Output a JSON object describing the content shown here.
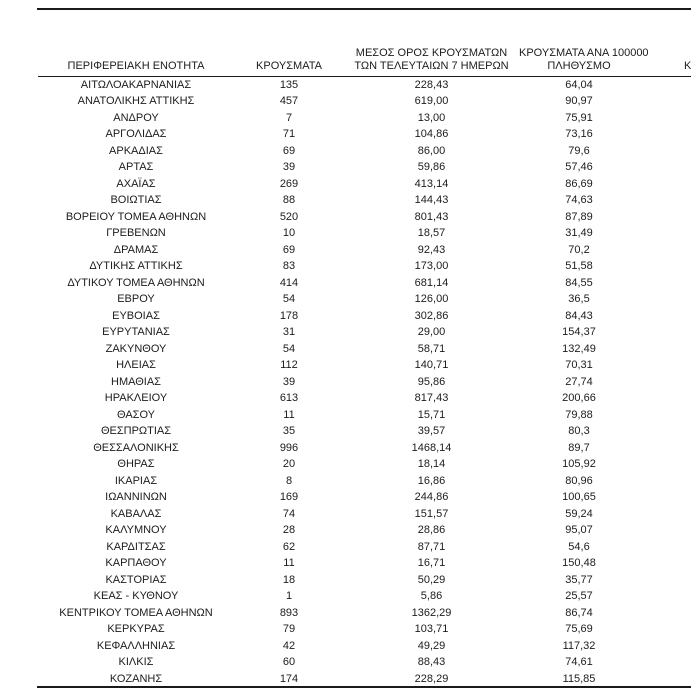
{
  "page": {
    "background": "#ffffff",
    "rule_color": "#1a1a1a",
    "text_color": "#1c1c1c"
  },
  "table": {
    "columns": [
      {
        "id": "region",
        "lines": [
          "ΠΕΡΙΦΕΡΕΙΑΚΗ ΕΝΟΤΗΤΑ"
        ]
      },
      {
        "id": "cases",
        "lines": [
          "ΚΡΟΥΣΜΑΤΑ"
        ]
      },
      {
        "id": "avg7",
        "lines": [
          "ΜΕΣΟΣ ΟΡΟΣ ΚΡΟΥΣΜΑΤΩΝ",
          "ΤΩΝ ΤΕΛΕΥΤΑΙΩΝ 7 ΗΜΕΡΩΝ"
        ]
      },
      {
        "id": "per100k",
        "lines": [
          "ΚΡΟΥΣΜΑΤΑ ΑΝΑ 100000",
          "ΠΛΗΘΥΣΜΟ"
        ]
      },
      {
        "id": "clipped",
        "lines": [
          "Κ"
        ]
      }
    ],
    "rows": [
      [
        "ΑΙΤΩΛΟΑΚΑΡΝΑΝΙΑΣ",
        "135",
        "228,43",
        "64,04"
      ],
      [
        "ΑΝΑΤΟΛΙΚΗΣ ΑΤΤΙΚΗΣ",
        "457",
        "619,00",
        "90,97"
      ],
      [
        "ΑΝΔΡΟΥ",
        "7",
        "13,00",
        "75,91"
      ],
      [
        "ΑΡΓΟΛΙΔΑΣ",
        "71",
        "104,86",
        "73,16"
      ],
      [
        "ΑΡΚΑΔΙΑΣ",
        "69",
        "86,00",
        "79,6"
      ],
      [
        "ΑΡΤΑΣ",
        "39",
        "59,86",
        "57,46"
      ],
      [
        "ΑΧΑΪΑΣ",
        "269",
        "413,14",
        "86,69"
      ],
      [
        "ΒΟΙΩΤΙΑΣ",
        "88",
        "144,43",
        "74,63"
      ],
      [
        "ΒΟΡΕΙΟΥ ΤΟΜΕΑ ΑΘΗΝΩΝ",
        "520",
        "801,43",
        "87,89"
      ],
      [
        "ΓΡΕΒΕΝΩΝ",
        "10",
        "18,57",
        "31,49"
      ],
      [
        "ΔΡΑΜΑΣ",
        "69",
        "92,43",
        "70,2"
      ],
      [
        "ΔΥΤΙΚΗΣ ΑΤΤΙΚΗΣ",
        "83",
        "173,00",
        "51,58"
      ],
      [
        "ΔΥΤΙΚΟΥ ΤΟΜΕΑ ΑΘΗΝΩΝ",
        "414",
        "681,14",
        "84,55"
      ],
      [
        "ΕΒΡΟΥ",
        "54",
        "126,00",
        "36,5"
      ],
      [
        "ΕΥΒΟΙΑΣ",
        "178",
        "302,86",
        "84,43"
      ],
      [
        "ΕΥΡΥΤΑΝΙΑΣ",
        "31",
        "29,00",
        "154,37"
      ],
      [
        "ΖΑΚΥΝΘΟΥ",
        "54",
        "58,71",
        "132,49"
      ],
      [
        "ΗΛΕΙΑΣ",
        "112",
        "140,71",
        "70,31"
      ],
      [
        "ΗΜΑΘΙΑΣ",
        "39",
        "95,86",
        "27,74"
      ],
      [
        "ΗΡΑΚΛΕΙΟΥ",
        "613",
        "817,43",
        "200,66"
      ],
      [
        "ΘΑΣΟΥ",
        "11",
        "15,71",
        "79,88"
      ],
      [
        "ΘΕΣΠΡΩΤΙΑΣ",
        "35",
        "39,57",
        "80,3"
      ],
      [
        "ΘΕΣΣΑΛΟΝΙΚΗΣ",
        "996",
        "1468,14",
        "89,7"
      ],
      [
        "ΘΗΡΑΣ",
        "20",
        "18,14",
        "105,92"
      ],
      [
        "ΙΚΑΡΙΑΣ",
        "8",
        "16,86",
        "80,96"
      ],
      [
        "ΙΩΑΝΝΙΝΩΝ",
        "169",
        "244,86",
        "100,65"
      ],
      [
        "ΚΑΒΑΛΑΣ",
        "74",
        "151,57",
        "59,24"
      ],
      [
        "ΚΑΛΥΜΝΟΥ",
        "28",
        "28,86",
        "95,07"
      ],
      [
        "ΚΑΡΔΙΤΣΑΣ",
        "62",
        "87,71",
        "54,6"
      ],
      [
        "ΚΑΡΠΑΘΟΥ",
        "11",
        "16,71",
        "150,48"
      ],
      [
        "ΚΑΣΤΟΡΙΑΣ",
        "18",
        "50,29",
        "35,77"
      ],
      [
        "ΚΕΑΣ - ΚΥΘΝΟΥ",
        "1",
        "5,86",
        "25,57"
      ],
      [
        "ΚΕΝΤΡΙΚΟΥ ΤΟΜΕΑ ΑΘΗΝΩΝ",
        "893",
        "1362,29",
        "86,74"
      ],
      [
        "ΚΕΡΚΥΡΑΣ",
        "79",
        "103,71",
        "75,69"
      ],
      [
        "ΚΕΦΑΛΛΗΝΙΑΣ",
        "42",
        "49,29",
        "117,32"
      ],
      [
        "ΚΙΛΚΙΣ",
        "60",
        "88,43",
        "74,61"
      ],
      [
        "ΚΟΖΑΝΗΣ",
        "174",
        "228,29",
        "115,85"
      ]
    ]
  }
}
